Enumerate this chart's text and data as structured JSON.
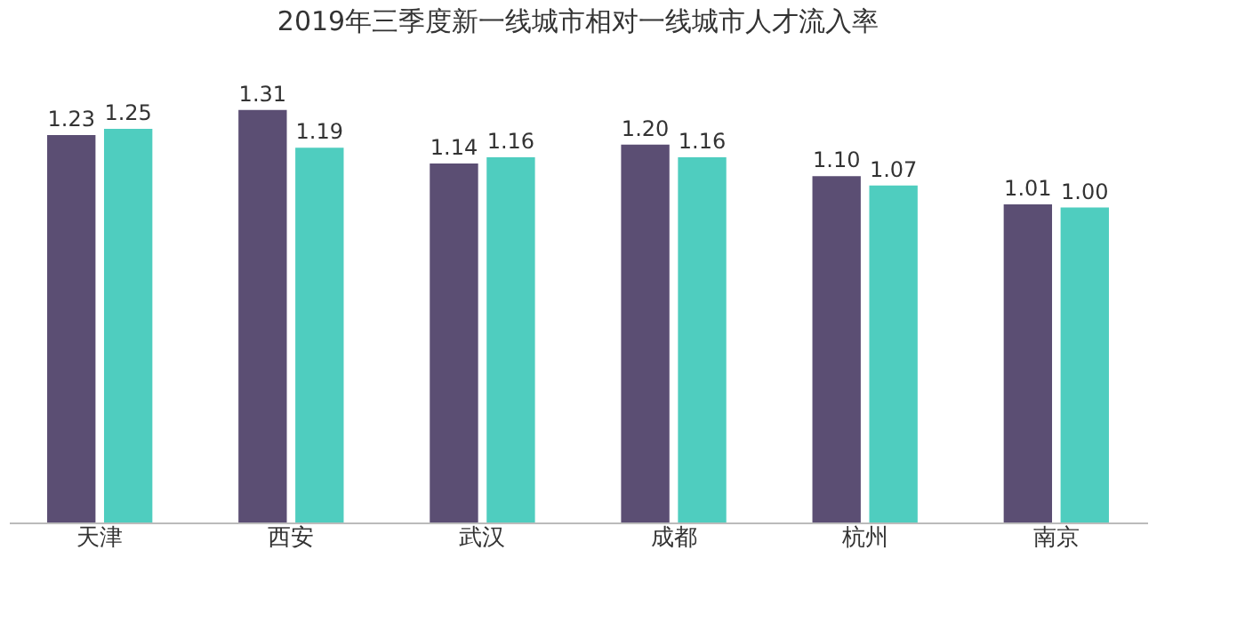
{
  "chart_data": {
    "type": "bar",
    "title": "2019年三季度新一线城市相对一线城市人才流入率",
    "categories": [
      "天津",
      "西安",
      "武汉",
      "成都",
      "杭州",
      "南京"
    ],
    "series": [
      {
        "color": "#5b4e73",
        "values": [
          1.23,
          1.31,
          1.14,
          1.2,
          1.1,
          1.01
        ],
        "value_labels": [
          "1.23",
          "1.31",
          "1.14",
          "1.20",
          "1.10",
          "1.01"
        ]
      },
      {
        "color": "#4fcdbf",
        "values": [
          1.25,
          1.19,
          1.16,
          1.16,
          1.07,
          1.0
        ],
        "value_labels": [
          "1.25",
          "1.19",
          "1.16",
          "1.16",
          "1.07",
          "1.00"
        ]
      }
    ],
    "grid": false,
    "legend": false
  }
}
